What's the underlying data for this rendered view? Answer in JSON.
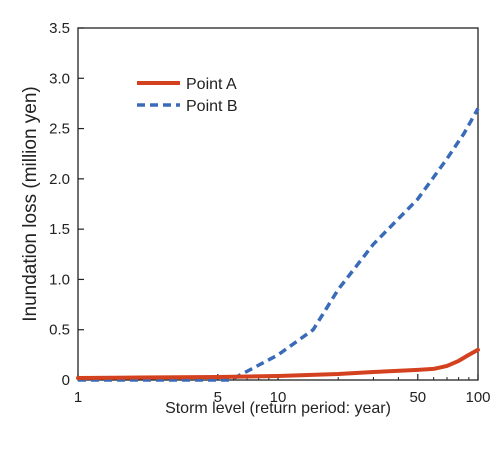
{
  "chart_data": {
    "type": "line",
    "title": "",
    "xlabel": "Storm level (return period: year)",
    "ylabel": "Inundation loss (million yen)",
    "x_scale": "log",
    "xlim": [
      1,
      100
    ],
    "ylim": [
      0,
      3.5
    ],
    "x_ticks": [
      {
        "value": 1,
        "label": "1"
      },
      {
        "value": 5,
        "label": "5"
      },
      {
        "value": 10,
        "label": "10"
      },
      {
        "value": 50,
        "label": "50"
      },
      {
        "value": 100,
        "label": "100"
      }
    ],
    "y_ticks": [
      {
        "value": 0,
        "label": "0"
      },
      {
        "value": 0.5,
        "label": "0.5"
      },
      {
        "value": 1.0,
        "label": "1.0"
      },
      {
        "value": 1.5,
        "label": "1.5"
      },
      {
        "value": 2.0,
        "label": "2.0"
      },
      {
        "value": 2.5,
        "label": "2.5"
      },
      {
        "value": 3.0,
        "label": "3.0"
      },
      {
        "value": 3.5,
        "label": "3.5"
      }
    ],
    "grid": false,
    "legend_position": "top-left",
    "series": [
      {
        "name": "Point A",
        "color": "#d4411e",
        "line_style": "solid",
        "points": [
          {
            "x": 1,
            "y": 0.02
          },
          {
            "x": 2,
            "y": 0.025
          },
          {
            "x": 5,
            "y": 0.03
          },
          {
            "x": 10,
            "y": 0.04
          },
          {
            "x": 20,
            "y": 0.06
          },
          {
            "x": 30,
            "y": 0.08
          },
          {
            "x": 50,
            "y": 0.1
          },
          {
            "x": 60,
            "y": 0.11
          },
          {
            "x": 70,
            "y": 0.14
          },
          {
            "x": 80,
            "y": 0.19
          },
          {
            "x": 90,
            "y": 0.25
          },
          {
            "x": 100,
            "y": 0.3
          }
        ]
      },
      {
        "name": "Point B",
        "color": "#3a6bb8",
        "line_style": "dashed",
        "points": [
          {
            "x": 1,
            "y": 0
          },
          {
            "x": 5.8,
            "y": 0
          },
          {
            "x": 10,
            "y": 0.25
          },
          {
            "x": 15,
            "y": 0.5
          },
          {
            "x": 20,
            "y": 0.9
          },
          {
            "x": 30,
            "y": 1.35
          },
          {
            "x": 50,
            "y": 1.8
          },
          {
            "x": 70,
            "y": 2.2
          },
          {
            "x": 85,
            "y": 2.45
          },
          {
            "x": 100,
            "y": 2.7
          }
        ]
      }
    ]
  }
}
